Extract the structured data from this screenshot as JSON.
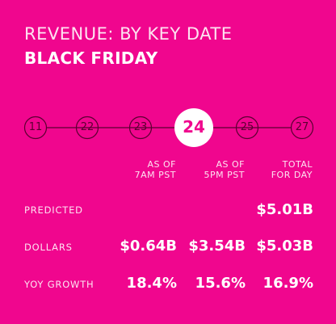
{
  "header": {
    "subtitle": "REVENUE: BY KEY DATE",
    "title": "BLACK FRIDAY"
  },
  "timeline": {
    "dates": [
      "11",
      "22",
      "23",
      "24",
      "25",
      "27"
    ],
    "active_index": 3
  },
  "columns": [
    {
      "line1": "AS OF",
      "line2": "7AM PST"
    },
    {
      "line1": "AS OF",
      "line2": "5PM PST"
    },
    {
      "line1": "TOTAL",
      "line2": "FOR DAY"
    }
  ],
  "rows": {
    "predicted": {
      "label": "PREDICTED",
      "value": "$5.01B"
    },
    "dollars": {
      "label": "DOLLARS",
      "values": [
        "$0.64B",
        "$3.54B",
        "$5.03B"
      ]
    },
    "yoy": {
      "label": "YOY GROWTH",
      "values": [
        "18.4%",
        "15.6%",
        "16.9%"
      ]
    }
  },
  "colors": {
    "background": "#f0068e",
    "text": "#ffffff",
    "circle_stroke": "#5a0030",
    "active_circle_fill": "#ffffff"
  }
}
